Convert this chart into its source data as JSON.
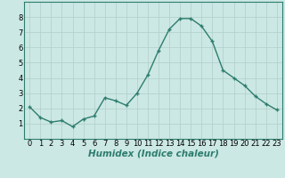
{
  "x": [
    0,
    1,
    2,
    3,
    4,
    5,
    6,
    7,
    8,
    9,
    10,
    11,
    12,
    13,
    14,
    15,
    16,
    17,
    18,
    19,
    20,
    21,
    22,
    23
  ],
  "y": [
    2.1,
    1.4,
    1.1,
    1.2,
    0.8,
    1.3,
    1.5,
    2.7,
    2.5,
    2.2,
    3.0,
    4.2,
    5.8,
    7.2,
    7.9,
    7.9,
    7.4,
    6.4,
    4.5,
    4.0,
    3.5,
    2.8,
    2.3,
    1.9
  ],
  "line_color": "#2d7d6e",
  "marker_color": "#2d7d6e",
  "bg_color": "#cce8e4",
  "grid_color": "#b0ceca",
  "xlabel": "Humidex (Indice chaleur)",
  "xlim": [
    -0.5,
    23.5
  ],
  "ylim": [
    0,
    9
  ],
  "yticks": [
    1,
    2,
    3,
    4,
    5,
    6,
    7,
    8
  ],
  "xticks": [
    0,
    1,
    2,
    3,
    4,
    5,
    6,
    7,
    8,
    9,
    10,
    11,
    12,
    13,
    14,
    15,
    16,
    17,
    18,
    19,
    20,
    21,
    22,
    23
  ],
  "marker_size": 3.5,
  "line_width": 1.0,
  "xlabel_fontsize": 7.5,
  "tick_fontsize": 6.0
}
